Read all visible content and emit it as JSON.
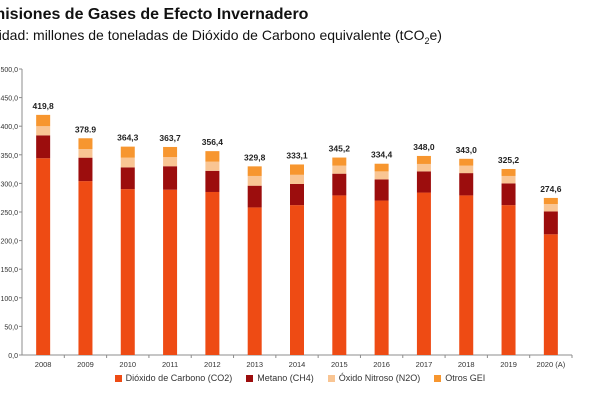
{
  "title": "misiones de Gases de Efecto Invernadero",
  "subtitle_main": "nidad: millones de toneladas de Dióxido de Carbono equivalente (tCO",
  "subtitle_sub": "2",
  "subtitle_end": "e)",
  "colors": {
    "CO2": "#EE4B14",
    "CH4": "#9C0D0D",
    "N2O": "#F9C593",
    "Otros": "#F7962F"
  },
  "chart_data": {
    "type": "bar",
    "stacked": true,
    "categories": [
      "2008",
      "2009",
      "2010",
      "2011",
      "2012",
      "2013",
      "2014",
      "2015",
      "2016",
      "2017",
      "2018",
      "2019",
      "2020 (A)"
    ],
    "totals": [
      419.8,
      378.9,
      364.3,
      363.7,
      356.4,
      329.8,
      333.1,
      345.2,
      334.4,
      348.0,
      343.0,
      325.2,
      274.6
    ],
    "total_labels": [
      "419,8",
      "378.9",
      "364,3",
      "363,7",
      "356,4",
      "329,8",
      "333,1",
      "345,2",
      "334,4",
      "348,0",
      "343,0",
      "325,2",
      "274,6"
    ],
    "series": [
      {
        "name": "Dióxido de Carbono (CO2)",
        "key": "CO2",
        "values": [
          344,
          304,
          290,
          289,
          285,
          258,
          262,
          279,
          270,
          284,
          279,
          262,
          211
        ]
      },
      {
        "name": "Metano (CH4)",
        "key": "CH4",
        "values": [
          40,
          41,
          38,
          41,
          37,
          38,
          37,
          38,
          37,
          37,
          39,
          38,
          40
        ]
      },
      {
        "name": "Óxido Nitroso (N2O)",
        "key": "N2O",
        "values": [
          16,
          15,
          17,
          16,
          16,
          17,
          16,
          14,
          14,
          13,
          13,
          13,
          13
        ]
      },
      {
        "name": "Otros GEI",
        "key": "Otros",
        "values": [
          19.8,
          18.9,
          19.3,
          17.7,
          18.4,
          16.8,
          18.1,
          14.2,
          13.4,
          14.0,
          12.0,
          12.2,
          10.6
        ]
      }
    ],
    "ylim": [
      0,
      500
    ],
    "ytick_values": [
      0,
      50,
      100,
      150,
      200,
      250,
      300,
      350,
      400,
      450,
      500
    ],
    "ytick_labels": [
      "0,0",
      "50,0",
      "100,0",
      "150,0",
      "200,0",
      "250,0",
      "300,0",
      "350,0",
      "400,0",
      "450,0",
      "500,0"
    ],
    "grid": false,
    "legend_position": "bottom"
  }
}
